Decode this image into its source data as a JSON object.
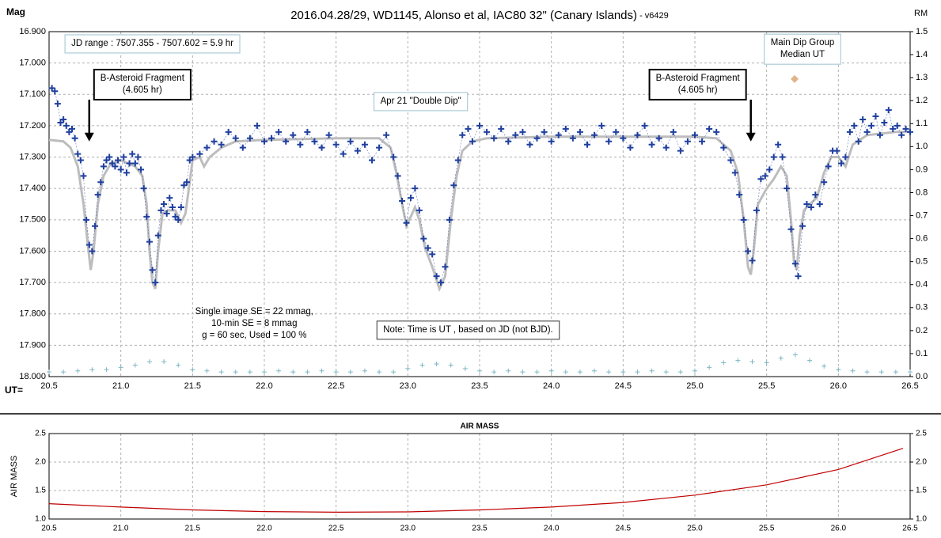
{
  "chart_data": [
    {
      "type": "scatter",
      "title": "2016.04.28/29,  WD1145, Alonso et al, IAC80 32\" (Canary Islands)",
      "subtitle": " - v6429",
      "y_label": "Mag",
      "y2_label": "RM",
      "x_label": "UT=",
      "xlim": [
        20.5,
        26.5
      ],
      "xticks": [
        20.5,
        {
          "value": 21,
          "label": "21.0"
        },
        21.5,
        {
          "value": 22,
          "label": "22.0"
        },
        22.5,
        {
          "value": 23,
          "label": "23.0"
        },
        23.5,
        {
          "value": 24,
          "label": "24.0"
        },
        24.5,
        {
          "value": 25,
          "label": "25.0"
        },
        25.5,
        {
          "value": 26,
          "label": "26.0"
        },
        26.5
      ],
      "ylim": [
        18.0,
        16.9
      ],
      "yticks": [
        {
          "value": 16.9,
          "label": "16.900"
        },
        {
          "value": 17.0,
          "label": "17.000"
        },
        {
          "value": 17.1,
          "label": "17.100"
        },
        {
          "value": 17.2,
          "label": "17.200"
        },
        {
          "value": 17.3,
          "label": "17.300"
        },
        {
          "value": 17.4,
          "label": "17.400"
        },
        {
          "value": 17.5,
          "label": "17.500"
        },
        {
          "value": 17.6,
          "label": "17.600"
        },
        {
          "value": 17.7,
          "label": "17.700"
        },
        {
          "value": 17.8,
          "label": "17.800"
        },
        {
          "value": 17.9,
          "label": "17.900"
        },
        {
          "value": 18.0,
          "label": "18.000"
        }
      ],
      "y2lim": [
        0,
        1.5
      ],
      "y2ticks": [
        1.5,
        1.4,
        1.3,
        1.2,
        1.1,
        {
          "value": 1.0,
          "label": "1.0"
        },
        0.9,
        0.8,
        0.7,
        0.6,
        0.5,
        0.4,
        0.3,
        0.2,
        0.1,
        {
          "value": 0.0,
          "label": "0.0"
        }
      ],
      "grid": true,
      "series": [
        {
          "style": "line",
          "color": "#bdbdbd",
          "x": [
            20.5,
            20.6,
            20.65,
            20.7,
            20.74,
            20.77,
            20.79,
            20.81,
            20.84,
            20.88,
            20.93,
            21.0,
            21.05,
            21.1,
            21.15,
            21.18,
            21.2,
            21.22,
            21.24,
            21.26,
            21.29,
            21.33,
            21.38,
            21.42,
            21.45,
            21.48,
            21.5,
            21.55,
            21.58,
            21.62,
            21.7,
            21.8,
            22.0,
            22.5,
            22.8,
            22.88,
            22.92,
            22.96,
            22.99,
            23.02,
            23.05,
            23.08,
            23.12,
            23.17,
            23.22,
            23.26,
            23.3,
            23.34,
            23.38,
            23.45,
            23.55,
            24.0,
            24.5,
            25.0,
            25.15,
            25.25,
            25.3,
            25.34,
            25.37,
            25.39,
            25.41,
            25.44,
            25.5,
            25.55,
            25.6,
            25.64,
            25.67,
            25.69,
            25.71,
            25.73,
            25.76,
            25.8,
            25.85,
            25.9,
            25.95,
            26.0,
            26.05,
            26.1,
            26.2,
            26.4,
            26.5
          ],
          "values": [
            17.245,
            17.25,
            17.27,
            17.33,
            17.45,
            17.58,
            17.66,
            17.6,
            17.45,
            17.36,
            17.32,
            17.31,
            17.32,
            17.33,
            17.36,
            17.45,
            17.6,
            17.7,
            17.72,
            17.6,
            17.48,
            17.47,
            17.47,
            17.51,
            17.48,
            17.38,
            17.31,
            17.3,
            17.33,
            17.3,
            17.27,
            17.25,
            17.245,
            17.24,
            17.24,
            17.27,
            17.35,
            17.45,
            17.52,
            17.49,
            17.46,
            17.5,
            17.59,
            17.65,
            17.72,
            17.68,
            17.5,
            17.36,
            17.28,
            17.25,
            17.24,
            17.235,
            17.235,
            17.235,
            17.24,
            17.28,
            17.35,
            17.5,
            17.65,
            17.675,
            17.6,
            17.45,
            17.4,
            17.37,
            17.33,
            17.36,
            17.5,
            17.63,
            17.66,
            17.55,
            17.47,
            17.45,
            17.43,
            17.35,
            17.3,
            17.3,
            17.33,
            17.26,
            17.23,
            17.22,
            17.22
          ]
        },
        {
          "style": "plus",
          "color": "#1f3f9e",
          "connect": true,
          "x": [
            20.52,
            20.54,
            20.56,
            20.58,
            20.6,
            20.62,
            20.64,
            20.66,
            20.68,
            20.7,
            20.72,
            20.74,
            20.76,
            20.78,
            20.8,
            20.82,
            20.84,
            20.86,
            20.88,
            20.9,
            20.92,
            20.94,
            20.96,
            20.98,
            21.0,
            21.02,
            21.04,
            21.06,
            21.08,
            21.1,
            21.12,
            21.14,
            21.16,
            21.18,
            21.2,
            21.22,
            21.24,
            21.26,
            21.28,
            21.3,
            21.32,
            21.34,
            21.36,
            21.38,
            21.4,
            21.42,
            21.44,
            21.46,
            21.48,
            21.5,
            21.55,
            21.6,
            21.65,
            21.7,
            21.75,
            21.8,
            21.85,
            21.9,
            21.95,
            22.0,
            22.05,
            22.1,
            22.15,
            22.2,
            22.25,
            22.3,
            22.35,
            22.4,
            22.45,
            22.5,
            22.55,
            22.6,
            22.65,
            22.7,
            22.75,
            22.8,
            22.85,
            22.9,
            22.93,
            22.96,
            22.99,
            23.02,
            23.05,
            23.08,
            23.11,
            23.14,
            23.17,
            23.2,
            23.23,
            23.26,
            23.29,
            23.32,
            23.35,
            23.38,
            23.42,
            23.45,
            23.5,
            23.55,
            23.6,
            23.65,
            23.7,
            23.75,
            23.8,
            23.85,
            23.9,
            23.95,
            24.0,
            24.05,
            24.1,
            24.15,
            24.2,
            24.25,
            24.3,
            24.35,
            24.4,
            24.45,
            24.5,
            24.55,
            24.6,
            24.65,
            24.7,
            24.75,
            24.8,
            24.85,
            24.9,
            24.95,
            25.0,
            25.05,
            25.1,
            25.15,
            25.2,
            25.25,
            25.28,
            25.31,
            25.34,
            25.37,
            25.4,
            25.43,
            25.46,
            25.49,
            25.52,
            25.55,
            25.58,
            25.61,
            25.64,
            25.67,
            25.7,
            25.72,
            25.75,
            25.78,
            25.81,
            25.84,
            25.87,
            25.9,
            25.93,
            25.96,
            25.99,
            26.02,
            26.05,
            26.08,
            26.11,
            26.14,
            26.17,
            26.2,
            26.23,
            26.26,
            26.29,
            26.32,
            26.35,
            26.38,
            26.41,
            26.44,
            26.47,
            26.5
          ],
          "values": [
            17.08,
            17.09,
            17.13,
            17.19,
            17.18,
            17.2,
            17.22,
            17.21,
            17.24,
            17.29,
            17.31,
            17.36,
            17.5,
            17.58,
            17.6,
            17.52,
            17.42,
            17.38,
            17.33,
            17.31,
            17.3,
            17.32,
            17.33,
            17.31,
            17.34,
            17.3,
            17.35,
            17.32,
            17.29,
            17.32,
            17.3,
            17.34,
            17.4,
            17.49,
            17.57,
            17.66,
            17.7,
            17.55,
            17.47,
            17.45,
            17.48,
            17.43,
            17.46,
            17.49,
            17.5,
            17.46,
            17.39,
            17.38,
            17.31,
            17.3,
            17.29,
            17.27,
            17.25,
            17.26,
            17.22,
            17.24,
            17.27,
            17.24,
            17.2,
            17.25,
            17.24,
            17.22,
            17.25,
            17.23,
            17.26,
            17.22,
            17.25,
            17.27,
            17.23,
            17.26,
            17.29,
            17.25,
            17.28,
            17.26,
            17.31,
            17.27,
            17.23,
            17.3,
            17.36,
            17.44,
            17.51,
            17.43,
            17.4,
            17.47,
            17.56,
            17.59,
            17.61,
            17.68,
            17.7,
            17.65,
            17.5,
            17.39,
            17.31,
            17.23,
            17.21,
            17.25,
            17.2,
            17.22,
            17.24,
            17.21,
            17.25,
            17.23,
            17.22,
            17.26,
            17.24,
            17.22,
            17.25,
            17.23,
            17.21,
            17.24,
            17.22,
            17.26,
            17.23,
            17.2,
            17.25,
            17.22,
            17.24,
            17.27,
            17.23,
            17.2,
            17.26,
            17.24,
            17.27,
            17.22,
            17.28,
            17.25,
            17.23,
            17.25,
            17.21,
            17.22,
            17.27,
            17.31,
            17.35,
            17.42,
            17.5,
            17.6,
            17.63,
            17.47,
            17.37,
            17.36,
            17.34,
            17.3,
            17.26,
            17.3,
            17.4,
            17.53,
            17.64,
            17.68,
            17.52,
            17.45,
            17.46,
            17.42,
            17.45,
            17.38,
            17.33,
            17.28,
            17.28,
            17.32,
            17.3,
            17.22,
            17.2,
            17.25,
            17.18,
            17.22,
            17.2,
            17.17,
            17.23,
            17.19,
            17.15,
            17.21,
            17.2,
            17.23,
            17.21,
            17.22
          ]
        },
        {
          "style": "plus",
          "color": "#7fb6c4",
          "axis": "y2",
          "x": [
            20.5,
            20.6,
            20.7,
            20.8,
            20.9,
            21.0,
            21.1,
            21.2,
            21.3,
            21.4,
            21.5,
            21.6,
            21.7,
            21.8,
            21.9,
            22.0,
            22.1,
            22.2,
            22.3,
            22.4,
            22.5,
            22.6,
            22.7,
            22.8,
            22.9,
            23.0,
            23.1,
            23.2,
            23.3,
            23.4,
            23.5,
            23.6,
            23.7,
            23.8,
            23.9,
            24.0,
            24.1,
            24.2,
            24.3,
            24.4,
            24.5,
            24.6,
            24.7,
            24.8,
            24.9,
            25.0,
            25.1,
            25.2,
            25.3,
            25.4,
            25.5,
            25.6,
            25.7,
            25.8,
            25.9,
            26.0,
            26.1,
            26.2,
            26.3,
            26.4,
            26.5
          ],
          "values": [
            0.02,
            0.02,
            0.025,
            0.03,
            0.03,
            0.04,
            0.05,
            0.065,
            0.065,
            0.05,
            0.03,
            0.025,
            0.02,
            0.02,
            0.02,
            0.02,
            0.025,
            0.02,
            0.02,
            0.025,
            0.02,
            0.02,
            0.025,
            0.02,
            0.02,
            0.035,
            0.05,
            0.055,
            0.05,
            0.035,
            0.025,
            0.02,
            0.025,
            0.02,
            0.02,
            0.025,
            0.02,
            0.02,
            0.025,
            0.02,
            0.02,
            0.02,
            0.025,
            0.02,
            0.02,
            0.025,
            0.04,
            0.06,
            0.07,
            0.065,
            0.06,
            0.08,
            0.095,
            0.07,
            0.045,
            0.03,
            0.025,
            0.02,
            0.02,
            0.02,
            0.02
          ]
        },
        {
          "style": "diamond",
          "color": "#e0b48a",
          "x": [
            25.695
          ],
          "values": [
            17.051
          ]
        }
      ],
      "annotations": [
        {
          "lines": [
            "JD range  : 7507.355  - 7507.602  = 5.9 hr"
          ],
          "x": 21.22,
          "y": 16.91,
          "box": "thin"
        },
        {
          "lines": [
            "B-Asteroid Fragment",
            "(4.605 hr)"
          ],
          "x": 21.15,
          "y": 17.021,
          "box": "bold",
          "arrow": {
            "x": 20.78,
            "y": 17.25
          }
        },
        {
          "lines": [
            "B-Asteroid Fragment",
            "(4.605 hr)"
          ],
          "x": 25.02,
          "y": 17.021,
          "box": "bold",
          "arrow": {
            "x": 25.39,
            "y": 17.25
          }
        },
        {
          "lines": [
            "Apr 21 \"Double Dip\""
          ],
          "x": 23.09,
          "y": 17.094,
          "box": "thin"
        },
        {
          "lines": [
            "Main Dip Group",
            "Median UT"
          ],
          "x": 25.75,
          "y": 16.908,
          "box": "thin"
        },
        {
          "lines": [
            "Single image SE = 22 mmag,",
            "10-min SE = 8 mmag",
            "g = 60 sec, Used = 100  %"
          ],
          "x": 21.93,
          "y": 17.765,
          "box": "none"
        },
        {
          "lines": [
            "Note: Time is UT , based on JD (not BJD)."
          ],
          "x": 23.42,
          "y": 17.823,
          "box": "dark"
        }
      ]
    },
    {
      "type": "line",
      "title": "AIR MASS",
      "y_label": "AIR MASS",
      "xlim": [
        20.5,
        26.5
      ],
      "xticks": [
        20.5,
        {
          "value": 21,
          "label": "21.0"
        },
        21.5,
        {
          "value": 22,
          "label": "22.0"
        },
        22.5,
        {
          "value": 23,
          "label": "23.0"
        },
        23.5,
        {
          "value": 24,
          "label": "24.0"
        },
        24.5,
        {
          "value": 25,
          "label": "25.0"
        },
        25.5,
        {
          "value": 26,
          "label": "26.0"
        },
        26.5
      ],
      "ylim": [
        1.0,
        2.5
      ],
      "yticks": [
        {
          "value": 1.0,
          "label": "1.0"
        },
        1.5,
        {
          "value": 2.0,
          "label": "2.0"
        },
        2.5
      ],
      "y2lim": [
        1.0,
        2.5
      ],
      "y2ticks": [
        {
          "value": 1.0,
          "label": "1.0"
        },
        1.5,
        {
          "value": 2.0,
          "label": "2.0"
        },
        2.5
      ],
      "grid": true,
      "series": [
        {
          "style": "line",
          "color": "#c00000",
          "x": [
            20.5,
            21.0,
            21.5,
            22.0,
            22.5,
            23.0,
            23.5,
            24.0,
            24.5,
            25.0,
            25.5,
            26.0,
            26.45
          ],
          "values": [
            1.27,
            1.21,
            1.16,
            1.13,
            1.12,
            1.125,
            1.16,
            1.21,
            1.29,
            1.42,
            1.6,
            1.87,
            2.24
          ]
        }
      ]
    }
  ]
}
